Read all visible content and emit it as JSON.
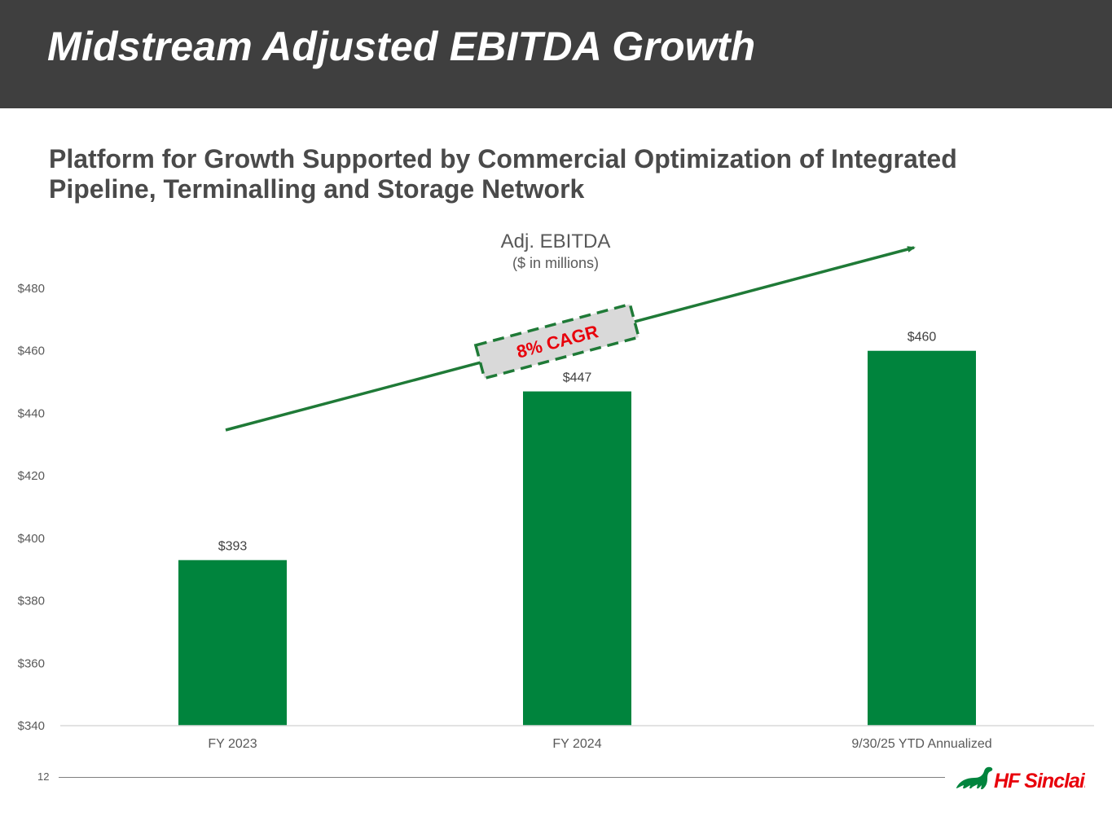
{
  "header": {
    "title": "Midstream Adjusted EBITDA Growth"
  },
  "subtitle": {
    "line1": "Platform for Growth Supported by Commercial Optimization of Integrated",
    "line2": "Pipeline, Terminalling and Storage Network"
  },
  "footer": {
    "page_number": "12",
    "logo_text": "HF Sinclair"
  },
  "colors": {
    "bar": "#00843d",
    "arrow": "#1f7a37",
    "cagr_text": "#e8000b",
    "header_bg": "#3f3f3f"
  },
  "chart_data": {
    "type": "bar",
    "title": "Adj. EBITDA",
    "subtitle": "($ in millions)",
    "categories": [
      "FY 2023",
      "FY 2024",
      "9/30/25 YTD Annualized"
    ],
    "values": [
      393,
      447,
      460
    ],
    "value_labels": [
      "$393",
      "$447",
      "$460"
    ],
    "ylim": [
      340,
      480
    ],
    "yticks": [
      340,
      360,
      380,
      400,
      420,
      440,
      460,
      480
    ],
    "ytick_labels": [
      "$340",
      "$360",
      "$380",
      "$400",
      "$420",
      "$440",
      "$460",
      "$480"
    ],
    "xlabel": "",
    "ylabel": "",
    "grid": false,
    "annotation": {
      "text": "8% CAGR",
      "kind": "trend-arrow"
    }
  }
}
